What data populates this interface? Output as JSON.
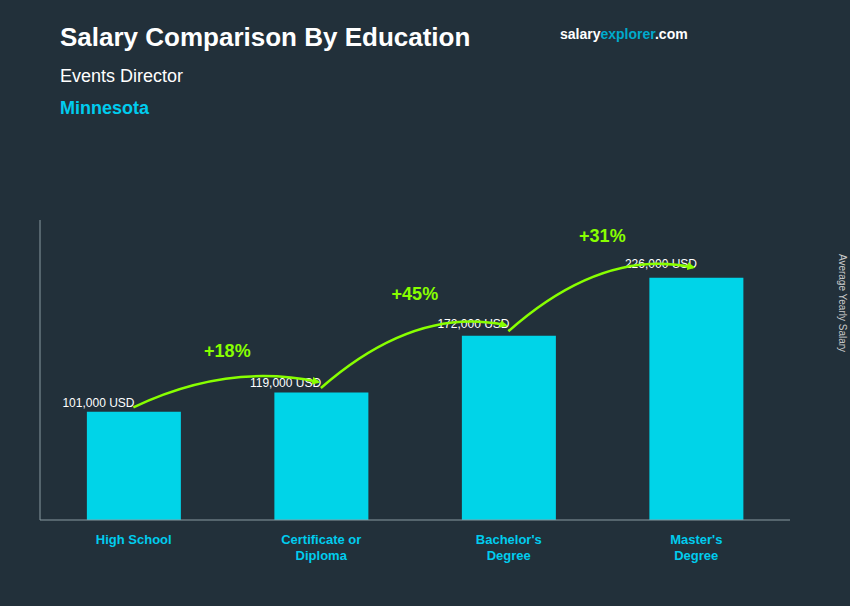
{
  "chart_data": {
    "type": "bar",
    "title": "Salary Comparison By Education",
    "subtitle": [
      "Events Director",
      "Minnesota"
    ],
    "categories": [
      "High School",
      "Certificate or\nDiploma",
      "Bachelor's\nDegree",
      "Master's\nDegree"
    ],
    "values": [
      101000,
      119000,
      172000,
      226000
    ],
    "value_labels": [
      "101,000 USD",
      "119,000 USD",
      "172,000 USD",
      "226,000 USD"
    ],
    "data_labels": true,
    "annotations": [
      "+18%",
      "+45%",
      "+31%",
      "salary",
      "explorer",
      ".com",
      "Average Yearly Salary"
    ],
    "color": "#00d4e8",
    "ylim": [
      0,
      280000
    ],
    "tick_labels": "x",
    "grid": false
  }
}
